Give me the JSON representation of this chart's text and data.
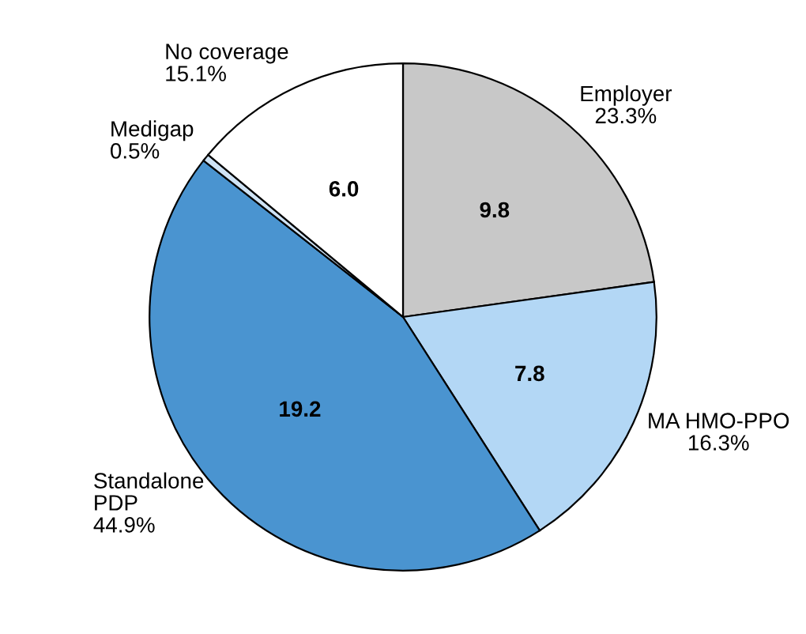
{
  "chart_data": {
    "type": "pie",
    "categories": [
      "Employer\n23.3%",
      "MA HMO-PPO\n16.3%",
      "Standalone\nPDP\n44.9%",
      "Medigap\n0.5%",
      "No coverage\n15.1%"
    ],
    "values": [
      9.8,
      7.8,
      19.2,
      0.2,
      6.0
    ],
    "value_labels": [
      "9.8",
      "7.8",
      "19.2",
      null,
      "6.0"
    ],
    "colors": [
      "#c8c8c8",
      "#b3d7f5",
      "#4a94d0",
      "#cfe3f5",
      "#ffffff"
    ]
  }
}
